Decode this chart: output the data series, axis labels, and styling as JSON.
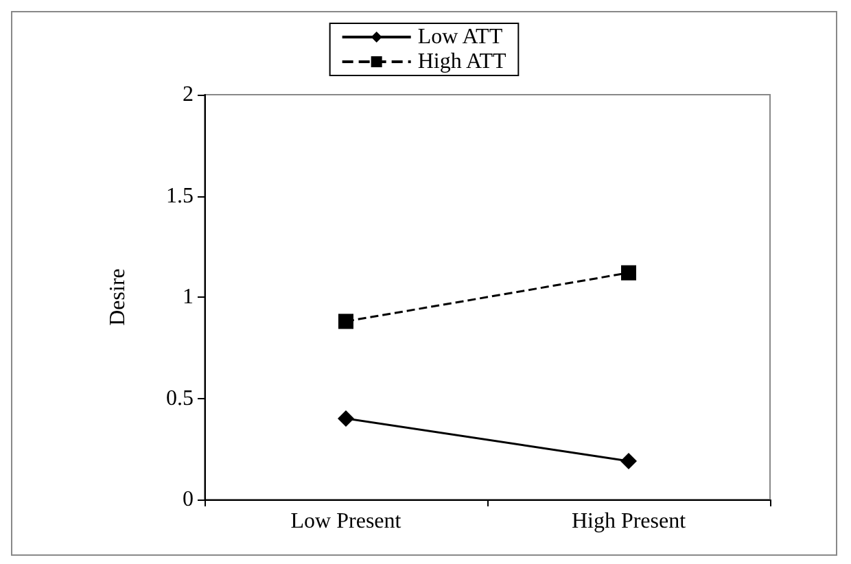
{
  "chart_data": {
    "type": "line",
    "ylabel": "Desire",
    "categories": [
      "Low Present",
      "High Present"
    ],
    "series": [
      {
        "name": "Low ATT",
        "color": "#000000",
        "values": [
          0.4,
          0.19
        ],
        "marker": "diamond",
        "line_style": "solid"
      },
      {
        "name": "High ATT",
        "color": "#000000",
        "values": [
          0.88,
          1.12
        ],
        "marker": "square",
        "line_style": "dashed"
      }
    ],
    "ylim": [
      0,
      2
    ],
    "yticks": [
      0,
      0.5,
      1,
      1.5,
      2
    ],
    "grid": false,
    "legend": "top"
  }
}
